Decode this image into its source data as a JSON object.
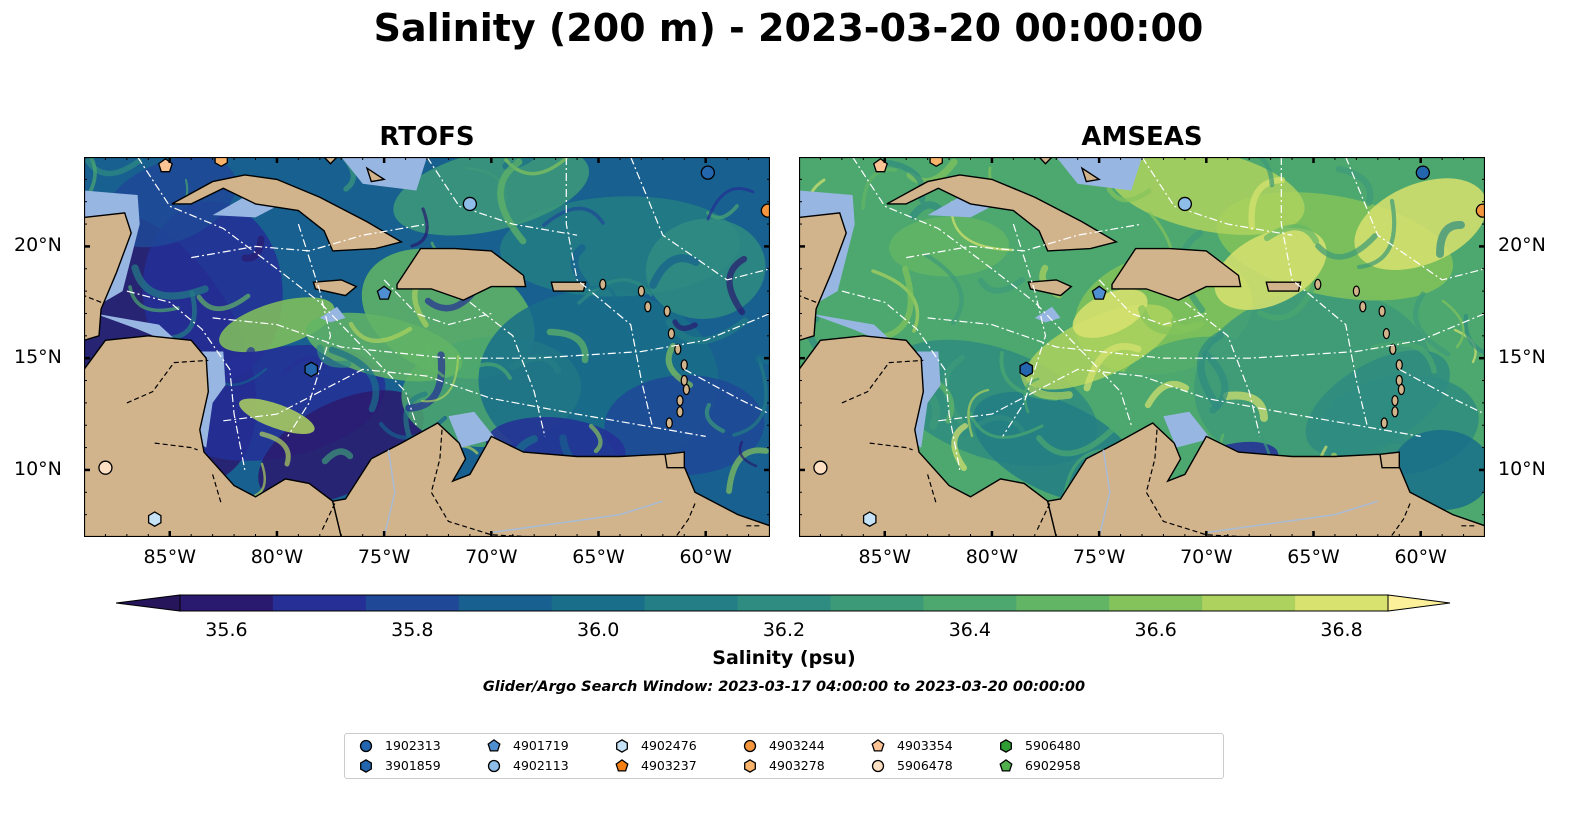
{
  "title": "Salinity (200 m) - 2023-03-20 00:00:00",
  "panels": [
    {
      "title": "RTOFS",
      "palette": "low",
      "show_left_labels": true,
      "show_right_labels": false
    },
    {
      "title": "AMSEAS",
      "palette": "high",
      "show_left_labels": false,
      "show_right_labels": true
    }
  ],
  "lon_labels": [
    "85°W",
    "80°W",
    "75°W",
    "70°W",
    "65°W",
    "60°W"
  ],
  "lat_labels": [
    "20°N",
    "15°N",
    "10°N"
  ],
  "colorbar": {
    "ticks": [
      "35.6",
      "35.8",
      "36.0",
      "36.2",
      "36.4",
      "36.6",
      "36.8"
    ],
    "label": "Salinity (psu)",
    "colors": [
      "#2a1a6f",
      "#252f96",
      "#1f4896",
      "#17608f",
      "#196f8a",
      "#237e85",
      "#2f8c80",
      "#3d9a79",
      "#4ca86f",
      "#62b565",
      "#84c35b",
      "#aed25e",
      "#d8e26f"
    ],
    "extend_low": "#26155a",
    "extend_high": "#fdf09a"
  },
  "search_window": "Glider/Argo Search Window: 2023-03-17 04:00:00 to 2023-03-20 00:00:00",
  "legend": [
    {
      "label": "1902313",
      "marker": "circle",
      "color": "#2466ad"
    },
    {
      "label": "3901859",
      "marker": "hexagon",
      "color": "#2466ad"
    },
    {
      "label": "4901719",
      "marker": "pentagon",
      "color": "#4f8fd1"
    },
    {
      "label": "4902113",
      "marker": "circle",
      "color": "#8dbde8"
    },
    {
      "label": "4902476",
      "marker": "hexagon",
      "color": "#c6e2f7"
    },
    {
      "label": "4903237",
      "marker": "pentagon",
      "color": "#f57f12"
    },
    {
      "label": "4903244",
      "marker": "circle",
      "color": "#f5963e"
    },
    {
      "label": "4903278",
      "marker": "hexagon",
      "color": "#f9b36b"
    },
    {
      "label": "4903354",
      "marker": "pentagon",
      "color": "#fcc394"
    },
    {
      "label": "5906478",
      "marker": "circle",
      "color": "#fde0c4"
    },
    {
      "label": "5906480",
      "marker": "hexagon",
      "color": "#2f9d33"
    },
    {
      "label": "6902958",
      "marker": "pentagon",
      "color": "#50b04c"
    }
  ],
  "colors": {
    "land": "#d2b48c",
    "shelf": "#98b6e2",
    "border": "#000000",
    "eez": "#ffffff",
    "rivers": "#a9bcd6"
  }
}
